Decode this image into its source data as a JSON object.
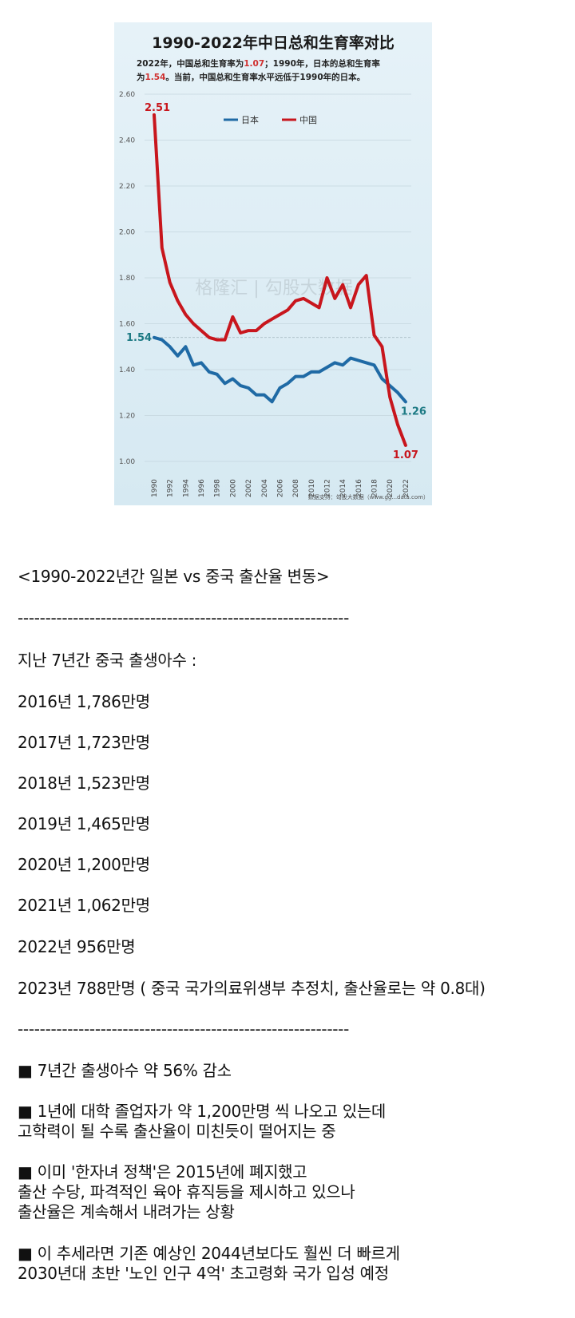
{
  "chart_data": {
    "type": "line",
    "title": "1990-2022年中日总和生育率对比",
    "subtitle_parts": [
      "2022年，中国总和生育率为",
      "1.07",
      "；1990年，日本的总和生育率",
      "为",
      "1.54",
      "。当前，中国总和生育率水平远低于1990年的日本。"
    ],
    "source": "数据支持：勾股大数据（www.gg...data.com）",
    "watermark": "格隆汇 | 勾股大数据",
    "ylim": [
      1.0,
      2.6
    ],
    "yticks": [
      "1.00",
      "1.20",
      "1.40",
      "1.60",
      "1.80",
      "2.00",
      "2.20",
      "2.40",
      "2.60"
    ],
    "x": [
      1990,
      1991,
      1992,
      1993,
      1994,
      1995,
      1996,
      1997,
      1998,
      1999,
      2000,
      2001,
      2002,
      2003,
      2004,
      2005,
      2006,
      2007,
      2008,
      2009,
      2010,
      2011,
      2012,
      2013,
      2014,
      2015,
      2016,
      2017,
      2018,
      2019,
      2020,
      2021,
      2022
    ],
    "xticks": [
      "1990",
      "1992",
      "1994",
      "1996",
      "1998",
      "2000",
      "2002",
      "2004",
      "2006",
      "2008",
      "2010",
      "2012",
      "2014",
      "2016",
      "2018",
      "2020",
      "2022"
    ],
    "legend_position": "top-center",
    "grid": true,
    "reference_line": 1.54,
    "series": [
      {
        "name": "日本",
        "color": "#1f6aa5",
        "values": [
          1.54,
          1.53,
          1.5,
          1.46,
          1.5,
          1.42,
          1.43,
          1.39,
          1.38,
          1.34,
          1.36,
          1.33,
          1.32,
          1.29,
          1.29,
          1.26,
          1.32,
          1.34,
          1.37,
          1.37,
          1.39,
          1.39,
          1.41,
          1.43,
          1.42,
          1.45,
          1.44,
          1.43,
          1.42,
          1.36,
          1.33,
          1.3,
          1.26
        ],
        "start_label": "1.54",
        "end_label": "1.26",
        "label_color": "#1d7a84"
      },
      {
        "name": "中国",
        "color": "#c8161d",
        "values": [
          2.51,
          1.93,
          1.78,
          1.7,
          1.64,
          1.6,
          1.57,
          1.54,
          1.53,
          1.53,
          1.63,
          1.56,
          1.57,
          1.57,
          1.6,
          1.62,
          1.64,
          1.66,
          1.7,
          1.71,
          1.69,
          1.67,
          1.8,
          1.71,
          1.77,
          1.67,
          1.77,
          1.81,
          1.55,
          1.5,
          1.28,
          1.16,
          1.07
        ],
        "start_label": "2.51",
        "end_label": "1.07",
        "label_color": "#c8161d"
      }
    ]
  },
  "article": {
    "heading": "<1990-2022년간 일본 vs 중국 출산율 변동>",
    "divider": "------------------------------------------------------------",
    "births_intro": "지난 7년간 중국 출생아수 :",
    "births": [
      "2016년 1,786만명",
      "2017년 1,723만명",
      "2018년 1,523만명",
      "2019년 1,465만명",
      "2020년 1,200만명",
      "2021년 1,062만명",
      "2022년 956만명",
      "2023년 788만명 ( 중국 국가의료위생부 추정치, 출산율로는 약 0.8대)"
    ],
    "bullets": [
      [
        "■ 7년간 출생아수 약 56% 감소"
      ],
      [
        "■ 1년에 대학 졸업자가 약 1,200만명 씩 나오고 있는데",
        "고학력이 될 수록 출산율이 미친듯이 떨어지는 중"
      ],
      [
        "■ 이미 '한자녀 정책'은 2015년에 폐지했고",
        "출산 수당, 파격적인 육아 휴직등을 제시하고 있으나",
        "출산율은 계속해서 내려가는 상황"
      ],
      [
        "■ 이 추세라면 기존 예상인 2044년보다도 훨씬 더 빠르게",
        "2030년대 초반 '노인 인구 4억' 초고령화 국가 입성 예정"
      ]
    ]
  }
}
